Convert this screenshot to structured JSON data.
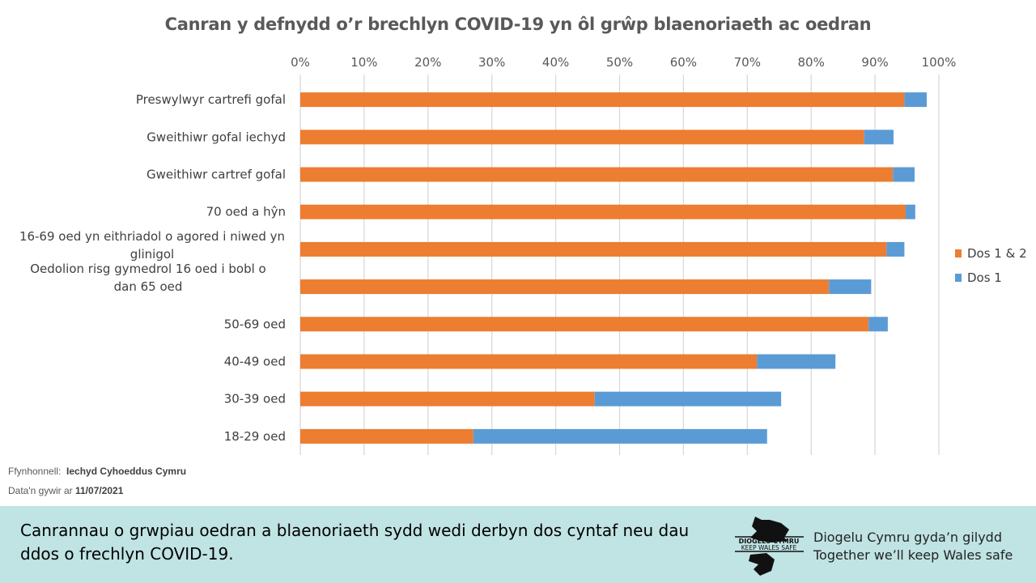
{
  "chart_data": {
    "type": "bar",
    "orientation": "horizontal",
    "stacked": true,
    "title": "Canran y defnydd o’r brechlyn COVID-19 yn ôl grŵp blaenoriaeth ac oedran",
    "xlim": [
      0,
      100
    ],
    "x_ticks": [
      "0%",
      "10%",
      "20%",
      "30%",
      "40%",
      "50%",
      "60%",
      "70%",
      "80%",
      "90%",
      "100%"
    ],
    "grid": "vertical",
    "legend_position": "right",
    "categories": [
      "Preswylwyr cartrefi gofal",
      "Gweithiwr gofal iechyd",
      "Gweithiwr cartref gofal",
      "70 oed a hŷn",
      "16-69 oed yn eithriadol o agored i niwed yn glinigol",
      "Oedolion risg gymedrol 16 oed i bobl o dan 65 oed",
      "50-69 oed",
      "40-49 oed",
      "30-39 oed",
      "18-29 oed"
    ],
    "series": [
      {
        "name": "Dos 1 & 2",
        "color": "#ed7d31",
        "values": [
          94.6,
          88.3,
          92.8,
          94.8,
          91.8,
          82.8,
          89.0,
          71.5,
          46.1,
          27.1
        ]
      },
      {
        "name": "Dos 1",
        "color": "#5b9bd5",
        "values": [
          3.5,
          4.6,
          3.4,
          1.5,
          2.8,
          6.6,
          3.0,
          12.3,
          29.2,
          46.0
        ]
      }
    ]
  },
  "source": {
    "label": "Ffynhonnell:",
    "value": "Iechyd Cyhoeddus Cymru",
    "date_label": "Data'n gywir ar",
    "date": "11/07/2021"
  },
  "footer": {
    "caption": "Canrannau o grwpiau oedran a blaenoriaeth sydd wedi derbyn dos cyntaf neu dau ddos o frechlyn COVID-19.",
    "logo_text": "DIOGELU CYMRU KEEP WALES SAFE",
    "tagline_cy": "Diogelu Cymru gyda’n gilydd",
    "tagline_en": "Together we’ll keep Wales safe"
  }
}
